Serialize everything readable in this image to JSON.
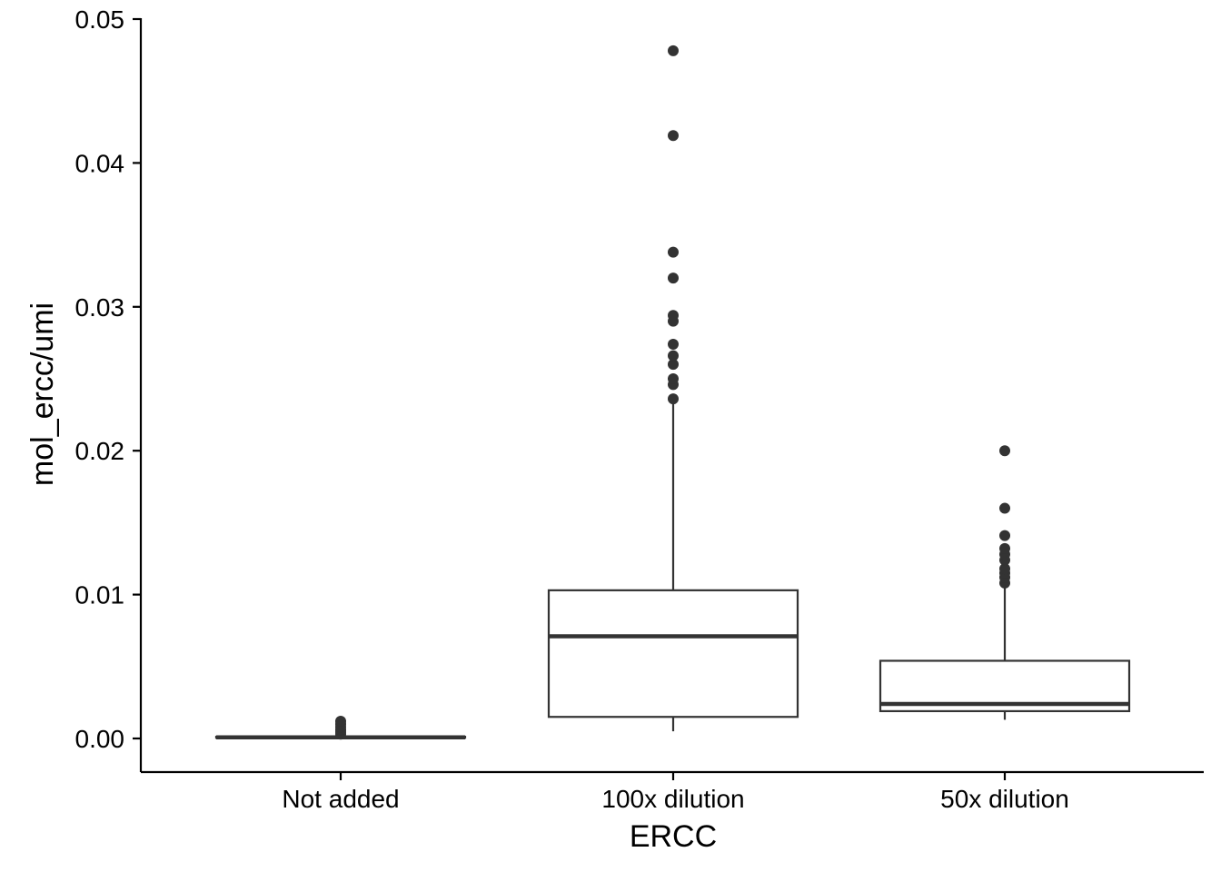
{
  "chart_data": {
    "type": "box",
    "xlabel": "ERCC",
    "ylabel": "mol_ercc/umi",
    "ylim": [
      -0.0023,
      0.05
    ],
    "yticks": [
      0.0,
      0.01,
      0.02,
      0.03,
      0.04,
      0.05
    ],
    "ytick_labels": [
      "0.00",
      "0.01",
      "0.02",
      "0.03",
      "0.04",
      "0.05"
    ],
    "grid": false,
    "legend": "none",
    "colors": {
      "box_stroke": "#333333",
      "outlier": "#333333",
      "axis": "#000000",
      "fill": "#ffffff"
    },
    "categories": [
      "Not added",
      "100x dilution",
      "50x dilution"
    ],
    "boxes": [
      {
        "category": "Not added",
        "whisker_low": 0.0,
        "q1": 5e-05,
        "median": 8e-05,
        "q3": 0.00012,
        "whisker_high": 0.0002,
        "outliers": [
          0.0003,
          0.00045,
          0.0006,
          0.0008,
          0.001,
          0.0012
        ]
      },
      {
        "category": "100x dilution",
        "whisker_low": 0.0005,
        "q1": 0.0015,
        "median": 0.0071,
        "q3": 0.0103,
        "whisker_high": 0.0233,
        "outliers": [
          0.0236,
          0.0246,
          0.025,
          0.026,
          0.0266,
          0.0274,
          0.029,
          0.0294,
          0.032,
          0.0338,
          0.0419,
          0.0478
        ]
      },
      {
        "category": "50x dilution",
        "whisker_low": 0.0013,
        "q1": 0.0019,
        "median": 0.0024,
        "q3": 0.0054,
        "whisker_high": 0.0107,
        "outliers": [
          0.0108,
          0.0112,
          0.0115,
          0.0118,
          0.0124,
          0.0128,
          0.0132,
          0.0141,
          0.016,
          0.02
        ]
      }
    ]
  }
}
